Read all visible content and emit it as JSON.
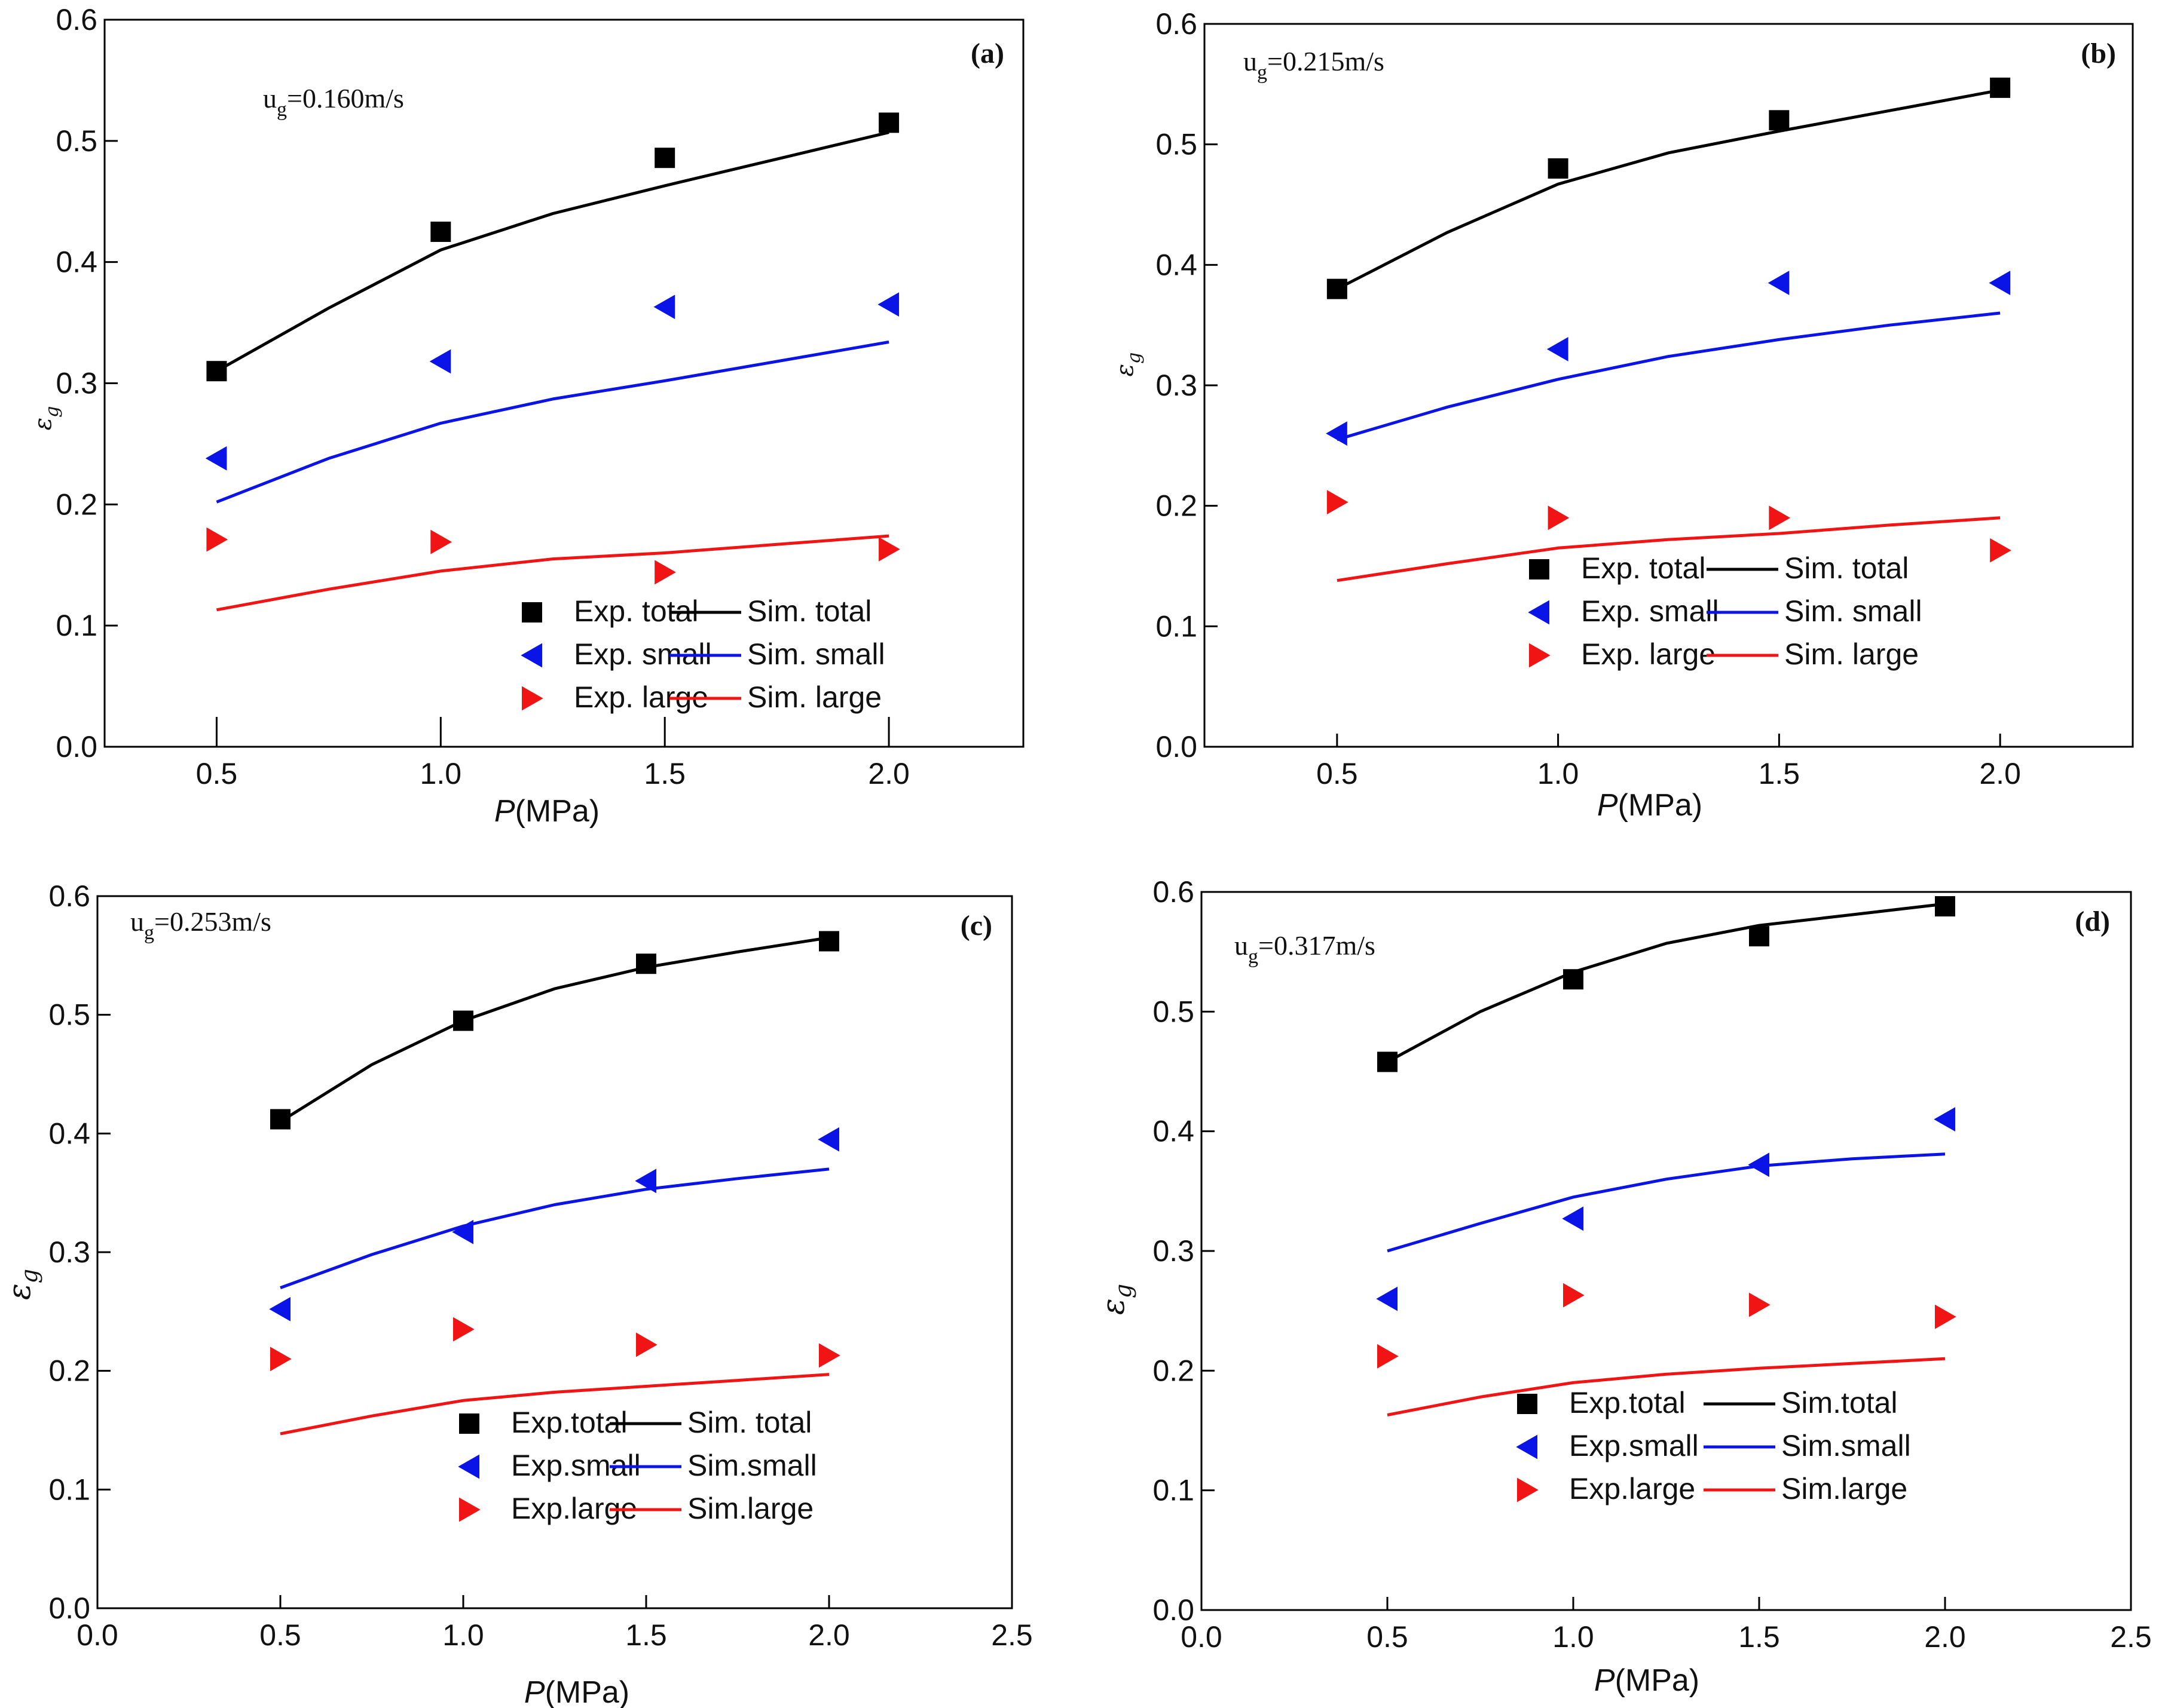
{
  "colors": {
    "total": "#000000",
    "small": "#0a14e6",
    "large": "#f01414",
    "axis": "#000000"
  },
  "chart_data": [
    {
      "type": "scatter",
      "panel_label": "(a)",
      "annotation": {
        "main": "u",
        "sub": "g",
        "rest": "=0.160m/s"
      },
      "xlabel": {
        "italic": "P",
        "rest": "(MPa)"
      },
      "ylabel": {
        "main": "ε",
        "sub": "g"
      },
      "xlim": [
        0.25,
        2.3
      ],
      "ylim": [
        0.0,
        0.6
      ],
      "xticks": [
        0.5,
        1.0,
        1.5,
        2.0
      ],
      "xtick_labels": [
        "0.5",
        "1.0",
        "1.5",
        "2.0"
      ],
      "yticks": [
        0,
        0.1,
        0.2,
        0.3,
        0.4,
        0.5,
        0.6
      ],
      "ytick_labels": [
        "0.0",
        "0.1",
        "0.2",
        "0.3",
        "0.4",
        "0.5",
        "0.6"
      ],
      "series": [
        {
          "name": "Exp. total",
          "kind": "points",
          "marker": "square",
          "color_key": "total",
          "x": [
            0.5,
            1.0,
            1.5,
            2.0
          ],
          "y": [
            0.31,
            0.425,
            0.486,
            0.515
          ]
        },
        {
          "name": "Exp. small",
          "kind": "points",
          "marker": "triangle-left",
          "color_key": "small",
          "x": [
            0.5,
            1.0,
            1.5,
            2.0
          ],
          "y": [
            0.238,
            0.318,
            0.363,
            0.365
          ]
        },
        {
          "name": "Exp. large",
          "kind": "points",
          "marker": "triangle-right",
          "color_key": "large",
          "x": [
            0.5,
            1.0,
            1.5,
            2.0
          ],
          "y": [
            0.171,
            0.169,
            0.144,
            0.163
          ]
        },
        {
          "name": "Sim. total",
          "kind": "line",
          "color_key": "total",
          "x": [
            0.5,
            0.75,
            1.0,
            1.25,
            1.5,
            1.75,
            2.0
          ],
          "y": [
            0.31,
            0.362,
            0.41,
            0.44,
            0.463,
            0.485,
            0.507
          ]
        },
        {
          "name": "Sim. small",
          "kind": "line",
          "color_key": "small",
          "x": [
            0.5,
            0.75,
            1.0,
            1.25,
            1.5,
            1.75,
            2.0
          ],
          "y": [
            0.202,
            0.238,
            0.267,
            0.287,
            0.302,
            0.318,
            0.334
          ]
        },
        {
          "name": "Sim. large",
          "kind": "line",
          "color_key": "large",
          "x": [
            0.5,
            0.75,
            1.0,
            1.25,
            1.5,
            1.75,
            2.0
          ],
          "y": [
            0.113,
            0.13,
            0.145,
            0.155,
            0.16,
            0.167,
            0.174
          ]
        }
      ],
      "legend": {
        "columns": [
          [
            "Exp. total",
            "Exp. small",
            "Exp. large"
          ],
          [
            "Sim. total",
            "Sim. small",
            "Sim. large"
          ]
        ],
        "placement": "bottom-right"
      }
    },
    {
      "type": "scatter",
      "panel_label": "(b)",
      "annotation": {
        "main": "u",
        "sub": "g",
        "rest": "=0.215m/s"
      },
      "xlabel": {
        "italic": "P",
        "rest": "(MPa)"
      },
      "ylabel": {
        "main": "ε",
        "sub": "g"
      },
      "xlim": [
        0.2,
        2.3
      ],
      "ylim": [
        0.0,
        0.6
      ],
      "xticks": [
        0.5,
        1.0,
        1.5,
        2.0
      ],
      "xtick_labels": [
        "0.5",
        "1.0",
        "1.5",
        "2.0"
      ],
      "yticks": [
        0,
        0.1,
        0.2,
        0.3,
        0.4,
        0.5,
        0.6
      ],
      "ytick_labels": [
        "0.0",
        "0.1",
        "0.2",
        "0.3",
        "0.4",
        "0.5",
        "0.6"
      ],
      "series": [
        {
          "name": "Exp. total",
          "kind": "points",
          "marker": "square",
          "color_key": "total",
          "x": [
            0.5,
            1.0,
            1.5,
            2.0
          ],
          "y": [
            0.38,
            0.48,
            0.52,
            0.547
          ]
        },
        {
          "name": "Exp. small",
          "kind": "points",
          "marker": "triangle-left",
          "color_key": "small",
          "x": [
            0.5,
            1.0,
            1.5,
            2.0
          ],
          "y": [
            0.26,
            0.33,
            0.385,
            0.385
          ]
        },
        {
          "name": "Exp. large",
          "kind": "points",
          "marker": "triangle-right",
          "color_key": "large",
          "x": [
            0.5,
            1.0,
            1.5,
            2.0
          ],
          "y": [
            0.203,
            0.19,
            0.19,
            0.163
          ]
        },
        {
          "name": "Sim. total",
          "kind": "line",
          "color_key": "total",
          "x": [
            0.5,
            0.75,
            1.0,
            1.25,
            1.5,
            1.75,
            2.0
          ],
          "y": [
            0.38,
            0.427,
            0.467,
            0.493,
            0.511,
            0.528,
            0.545
          ]
        },
        {
          "name": "Sim. small",
          "kind": "line",
          "color_key": "small",
          "x": [
            0.5,
            0.75,
            1.0,
            1.25,
            1.5,
            1.75,
            2.0
          ],
          "y": [
            0.255,
            0.282,
            0.305,
            0.324,
            0.338,
            0.35,
            0.36
          ]
        },
        {
          "name": "Sim. large",
          "kind": "line",
          "color_key": "large",
          "x": [
            0.5,
            0.75,
            1.0,
            1.25,
            1.5,
            1.75,
            2.0
          ],
          "y": [
            0.138,
            0.152,
            0.165,
            0.172,
            0.177,
            0.184,
            0.19
          ]
        }
      ],
      "legend": {
        "columns": [
          [
            "Exp. total",
            "Exp. small",
            "Exp. large"
          ],
          [
            "Sim. total",
            "Sim. small",
            "Sim. large"
          ]
        ],
        "placement": "bottom-right"
      }
    },
    {
      "type": "scatter",
      "panel_label": "(c)",
      "annotation": {
        "main": "u",
        "sub": "g",
        "rest": "=0.253m/s"
      },
      "xlabel": {
        "italic": "P",
        "rest": "(MPa)"
      },
      "ylabel": {
        "main": "ε",
        "sub": "g"
      },
      "xlim": [
        0.0,
        2.5
      ],
      "ylim": [
        0.0,
        0.6
      ],
      "xticks": [
        0.0,
        0.5,
        1.0,
        1.5,
        2.0,
        2.5
      ],
      "xtick_labels": [
        "0.0",
        "0.5",
        "1.0",
        "1.5",
        "2.0",
        "2.5"
      ],
      "yticks": [
        0,
        0.1,
        0.2,
        0.3,
        0.4,
        0.5,
        0.6
      ],
      "ytick_labels": [
        "0.0",
        "0.1",
        "0.2",
        "0.3",
        "0.4",
        "0.5",
        "0.6"
      ],
      "series": [
        {
          "name": "Exp.total",
          "kind": "points",
          "marker": "square",
          "color_key": "total",
          "x": [
            0.5,
            1.0,
            1.5,
            2.0
          ],
          "y": [
            0.412,
            0.495,
            0.543,
            0.562
          ]
        },
        {
          "name": "Exp.small",
          "kind": "points",
          "marker": "triangle-left",
          "color_key": "small",
          "x": [
            0.5,
            1.0,
            1.5,
            2.0
          ],
          "y": [
            0.252,
            0.317,
            0.36,
            0.395
          ]
        },
        {
          "name": "Exp.large",
          "kind": "points",
          "marker": "triangle-right",
          "color_key": "large",
          "x": [
            0.5,
            1.0,
            1.5,
            2.0
          ],
          "y": [
            0.21,
            0.235,
            0.222,
            0.213
          ]
        },
        {
          "name": "Sim. total",
          "kind": "line",
          "color_key": "total",
          "x": [
            0.5,
            0.75,
            1.0,
            1.25,
            1.5,
            1.75,
            2.0
          ],
          "y": [
            0.41,
            0.458,
            0.495,
            0.522,
            0.54,
            0.553,
            0.565
          ]
        },
        {
          "name": "Sim.small",
          "kind": "line",
          "color_key": "small",
          "x": [
            0.5,
            0.75,
            1.0,
            1.25,
            1.5,
            1.75,
            2.0
          ],
          "y": [
            0.27,
            0.298,
            0.322,
            0.34,
            0.353,
            0.362,
            0.37
          ]
        },
        {
          "name": "Sim.large",
          "kind": "line",
          "color_key": "large",
          "x": [
            0.5,
            0.75,
            1.0,
            1.25,
            1.5,
            1.75,
            2.0
          ],
          "y": [
            0.147,
            0.162,
            0.175,
            0.182,
            0.187,
            0.192,
            0.197
          ]
        }
      ],
      "legend": {
        "columns": [
          [
            "Exp.total",
            "Exp.small",
            "Exp.large"
          ],
          [
            "Sim. total",
            "Sim.small",
            "Sim.large"
          ]
        ],
        "placement": "bottom-right"
      }
    },
    {
      "type": "scatter",
      "panel_label": "(d)",
      "annotation": {
        "main": "u",
        "sub": "g",
        "rest": "=0.317m/s"
      },
      "xlabel": {
        "italic": "P",
        "rest": "(MPa)"
      },
      "ylabel": {
        "main": "ε",
        "sub": "g"
      },
      "xlim": [
        0.0,
        2.5
      ],
      "ylim": [
        0.0,
        0.6
      ],
      "xticks": [
        0.0,
        0.5,
        1.0,
        1.5,
        2.0,
        2.5
      ],
      "xtick_labels": [
        "0.0",
        "0.5",
        "1.0",
        "1.5",
        "2.0",
        "2.5"
      ],
      "yticks": [
        0,
        0.1,
        0.2,
        0.3,
        0.4,
        0.5,
        0.6
      ],
      "ytick_labels": [
        "0.0",
        "0.1",
        "0.2",
        "0.3",
        "0.4",
        "0.5",
        "0.6"
      ],
      "series": [
        {
          "name": "Exp.total",
          "kind": "points",
          "marker": "square",
          "color_key": "total",
          "x": [
            0.5,
            1.0,
            1.5,
            2.0
          ],
          "y": [
            0.458,
            0.527,
            0.563,
            0.588
          ]
        },
        {
          "name": "Exp.small",
          "kind": "points",
          "marker": "triangle-left",
          "color_key": "small",
          "x": [
            0.5,
            1.0,
            1.5,
            2.0
          ],
          "y": [
            0.26,
            0.327,
            0.372,
            0.41
          ]
        },
        {
          "name": "Exp.large",
          "kind": "points",
          "marker": "triangle-right",
          "color_key": "large",
          "x": [
            0.5,
            1.0,
            1.5,
            2.0
          ],
          "y": [
            0.212,
            0.263,
            0.255,
            0.245
          ]
        },
        {
          "name": "Sim.total",
          "kind": "line",
          "color_key": "total",
          "x": [
            0.5,
            0.75,
            1.0,
            1.25,
            1.5,
            1.75,
            2.0
          ],
          "y": [
            0.458,
            0.5,
            0.533,
            0.557,
            0.572,
            0.581,
            0.59
          ]
        },
        {
          "name": "Sim.small",
          "kind": "line",
          "color_key": "small",
          "x": [
            0.5,
            0.75,
            1.0,
            1.25,
            1.5,
            1.75,
            2.0
          ],
          "y": [
            0.3,
            0.323,
            0.345,
            0.36,
            0.371,
            0.377,
            0.381
          ]
        },
        {
          "name": "Sim.large",
          "kind": "line",
          "color_key": "large",
          "x": [
            0.5,
            0.75,
            1.0,
            1.25,
            1.5,
            1.75,
            2.0
          ],
          "y": [
            0.163,
            0.178,
            0.19,
            0.197,
            0.202,
            0.206,
            0.21
          ]
        }
      ],
      "legend": {
        "columns": [
          [
            "Exp.total",
            "Exp.small",
            "Exp.large"
          ],
          [
            "Sim.total",
            "Sim.small",
            "Sim.large"
          ]
        ],
        "placement": "bottom-right"
      }
    }
  ]
}
